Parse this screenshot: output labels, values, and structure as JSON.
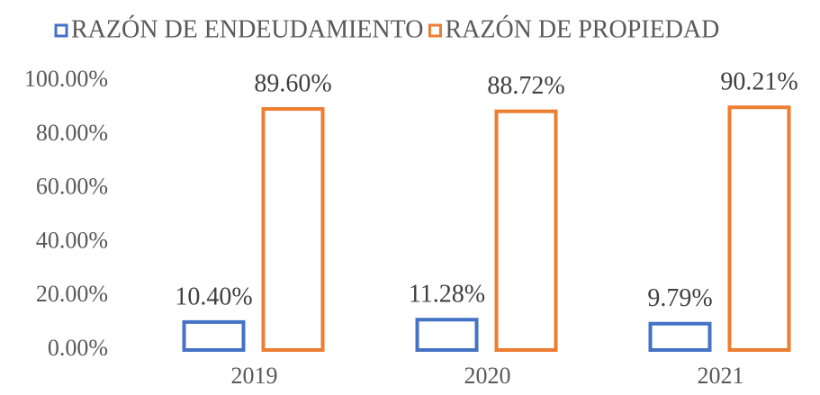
{
  "chart_data": {
    "type": "bar",
    "categories": [
      "2019",
      "2020",
      "2021"
    ],
    "series": [
      {
        "name": "RAZÓN DE ENDEUDAMIENTO",
        "color": "#4472c4",
        "values": [
          10.4,
          11.28,
          9.79
        ],
        "value_labels": [
          "10.40%",
          "11.28%",
          "9.79%"
        ]
      },
      {
        "name": "RAZÓN DE PROPIEDAD",
        "color": "#ed7d31",
        "values": [
          89.6,
          88.72,
          90.21
        ],
        "value_labels": [
          "89.60%",
          "88.72%",
          "90.21%"
        ]
      }
    ],
    "ylim": [
      0,
      100
    ],
    "yticks": [
      {
        "value": 0,
        "label": "0.00%"
      },
      {
        "value": 20,
        "label": "20.00%"
      },
      {
        "value": 40,
        "label": "40.00%"
      },
      {
        "value": 60,
        "label": "60.00%"
      },
      {
        "value": 80,
        "label": "80.00%"
      },
      {
        "value": 100,
        "label": "100.00%"
      }
    ],
    "legend": "top",
    "grid": false
  }
}
